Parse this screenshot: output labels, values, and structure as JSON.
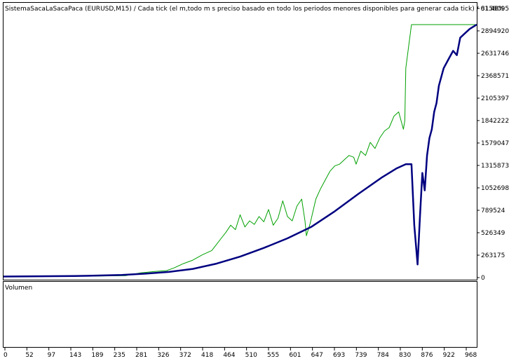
{
  "header": {
    "title": "SistemaSacaLaSacaPaca (EURUSD,M15)  / Cada tick (el m‚todo m s preciso basado en todo los periodos menores disponibles para generar cada tick)  / 61.48%"
  },
  "volume_panel": {
    "label": "Volumen"
  },
  "colors": {
    "balance": "#00a000",
    "equity": "#000080",
    "frame": "#000000",
    "background": "#ffffff"
  },
  "chart_data": {
    "type": "line",
    "title": "SistemaSacaLaSacaPaca (EURUSD,M15)  / Cada tick (el m‚todo m s preciso basado en todo los periodos menores disponibles para generar cada tick)  / 61.48%",
    "xlabel": "",
    "ylabel": "",
    "x_ticks": [
      "0",
      "52",
      "97",
      "143",
      "189",
      "235",
      "281",
      "326",
      "372",
      "418",
      "464",
      "510",
      "555",
      "601",
      "647",
      "693",
      "739",
      "784",
      "830",
      "876",
      "922",
      "968"
    ],
    "y_ticks": [
      "3158095",
      "2894920",
      "2631746",
      "2368571",
      "2105397",
      "1842222",
      "1579047",
      "1315873",
      "1052698",
      "789524",
      "526349",
      "263175",
      "0"
    ],
    "xlim": [
      0,
      1000
    ],
    "ylim": [
      0,
      3158095
    ],
    "grid": false,
    "legend": "none",
    "series": [
      {
        "color": "#00a000",
        "points": [
          [
            0,
            12000
          ],
          [
            200,
            18000
          ],
          [
            258,
            22000
          ],
          [
            270,
            35000
          ],
          [
            290,
            55000
          ],
          [
            320,
            70000
          ],
          [
            345,
            80000
          ],
          [
            360,
            110000
          ],
          [
            380,
            160000
          ],
          [
            400,
            200000
          ],
          [
            420,
            260000
          ],
          [
            440,
            310000
          ],
          [
            450,
            380000
          ],
          [
            460,
            450000
          ],
          [
            470,
            520000
          ],
          [
            480,
            600000
          ],
          [
            490,
            550000
          ],
          [
            500,
            720000
          ],
          [
            510,
            580000
          ],
          [
            520,
            650000
          ],
          [
            530,
            610000
          ],
          [
            540,
            700000
          ],
          [
            550,
            640000
          ],
          [
            560,
            780000
          ],
          [
            570,
            600000
          ],
          [
            580,
            680000
          ],
          [
            590,
            880000
          ],
          [
            600,
            700000
          ],
          [
            610,
            650000
          ],
          [
            620,
            820000
          ],
          [
            630,
            900000
          ],
          [
            637,
            650000
          ],
          [
            640,
            480000
          ],
          [
            648,
            620000
          ],
          [
            660,
            900000
          ],
          [
            670,
            1020000
          ],
          [
            680,
            1120000
          ],
          [
            690,
            1220000
          ],
          [
            700,
            1280000
          ],
          [
            710,
            1300000
          ],
          [
            720,
            1350000
          ],
          [
            730,
            1400000
          ],
          [
            740,
            1380000
          ],
          [
            745,
            1300000
          ],
          [
            755,
            1450000
          ],
          [
            765,
            1400000
          ],
          [
            775,
            1550000
          ],
          [
            785,
            1480000
          ],
          [
            795,
            1600000
          ],
          [
            805,
            1680000
          ],
          [
            815,
            1720000
          ],
          [
            825,
            1850000
          ],
          [
            835,
            1900000
          ],
          [
            845,
            1700000
          ],
          [
            848,
            1800000
          ],
          [
            850,
            2400000
          ],
          [
            862,
            2900000
          ],
          [
            1000,
            2900000
          ]
        ]
      },
      {
        "color": "#000080",
        "points": [
          [
            0,
            12000
          ],
          [
            150,
            18000
          ],
          [
            250,
            30000
          ],
          [
            300,
            45000
          ],
          [
            350,
            65000
          ],
          [
            400,
            100000
          ],
          [
            450,
            160000
          ],
          [
            500,
            240000
          ],
          [
            550,
            340000
          ],
          [
            600,
            450000
          ],
          [
            650,
            580000
          ],
          [
            700,
            760000
          ],
          [
            750,
            960000
          ],
          [
            800,
            1150000
          ],
          [
            830,
            1250000
          ],
          [
            850,
            1300000
          ],
          [
            862,
            1300000
          ],
          [
            868,
            600000
          ],
          [
            875,
            150000
          ],
          [
            880,
            700000
          ],
          [
            885,
            1200000
          ],
          [
            890,
            1000000
          ],
          [
            895,
            1400000
          ],
          [
            900,
            1600000
          ],
          [
            905,
            1700000
          ],
          [
            910,
            1900000
          ],
          [
            915,
            2000000
          ],
          [
            920,
            2200000
          ],
          [
            930,
            2400000
          ],
          [
            940,
            2500000
          ],
          [
            950,
            2600000
          ],
          [
            958,
            2550000
          ],
          [
            965,
            2750000
          ],
          [
            975,
            2800000
          ],
          [
            985,
            2850000
          ],
          [
            1000,
            2900000
          ]
        ]
      }
    ]
  }
}
